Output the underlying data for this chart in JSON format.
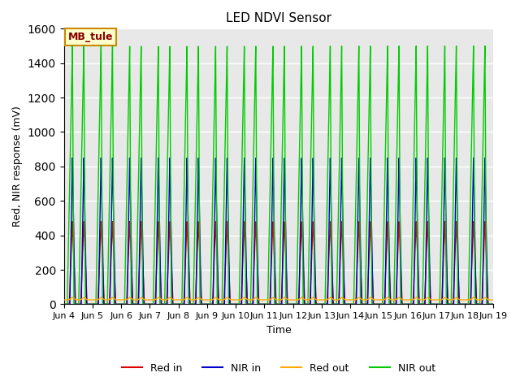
{
  "title": "LED NDVI Sensor",
  "ylabel": "Red, NIR response (mV)",
  "xlabel": "Time",
  "ylim": [
    0,
    1600
  ],
  "yticks": [
    0,
    200,
    400,
    600,
    800,
    1000,
    1200,
    1400,
    1600
  ],
  "xtick_labels": [
    "Jun 4",
    "Jun 5",
    "Jun 6",
    "Jun 7",
    "Jun 8",
    "Jun 9",
    "Jun 10",
    "Jun 11",
    "Jun 12",
    "Jun 13",
    "Jun 14",
    "Jun 15",
    "Jun 16",
    "Jun 17",
    "Jun 18",
    "Jun 19"
  ],
  "annotation_text": "MB_tule",
  "annotation_bg": "#ffffcc",
  "annotation_border": "#cc8800",
  "annotation_text_color": "#880000",
  "colors": {
    "red_in": "#dd0000",
    "nir_in": "#0000cc",
    "red_out": "#ffaa00",
    "nir_out": "#00cc00"
  },
  "legend_labels": [
    "Red in",
    "NIR in",
    "Red out",
    "NIR out"
  ],
  "bg_color": "#e8e8e8",
  "grid_color": "#ffffff",
  "peaks": {
    "red_in": 480,
    "nir_in": 850,
    "red_out_base": 25,
    "red_out_peak": 40,
    "nir_out": 1500
  },
  "spike_offsets": [
    0.3,
    0.7
  ],
  "spike_widths": {
    "red_in": 0.22,
    "nir_in": 0.18,
    "nir_out_rise": 0.2,
    "nir_out_fall": 0.04
  }
}
